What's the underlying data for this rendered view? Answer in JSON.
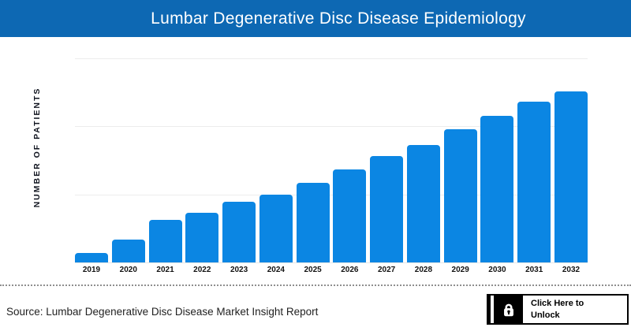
{
  "header": {
    "title": "Lumbar Degenerative Disc Disease Epidemiology",
    "background": "#0d68b3",
    "text_color": "#ffffff"
  },
  "chart_data": {
    "type": "bar",
    "title": "Lumbar Degenerative Disc Disease Epidemiology",
    "categories": [
      "2019",
      "2020",
      "2021",
      "2022",
      "2023",
      "2024",
      "2025",
      "2026",
      "2027",
      "2028",
      "2029",
      "2030",
      "2031",
      "2032"
    ],
    "values": [
      4.7,
      11.1,
      20.7,
      24.4,
      29.7,
      33.3,
      38.9,
      45.6,
      52.0,
      57.4,
      65.3,
      71.8,
      78.7,
      83.8
    ],
    "values_note": "relative bar heights in % of y-axis span; no numeric tick labels are shown in the figure",
    "xlabel": "",
    "ylabel": "NUMBER OF PATIENTS",
    "ylim": [
      0,
      100
    ],
    "grid": "horizontal",
    "gridline_count": 3,
    "bar_color": "#0b86e3",
    "legend": "none"
  },
  "footer": {
    "source_text": "Source: Lumbar Degenerative Disc Disease Market Insight Report",
    "unlock_button": {
      "label_line1": "Click Here to",
      "label_line2": "Unlock",
      "icon": "lock-icon"
    }
  }
}
